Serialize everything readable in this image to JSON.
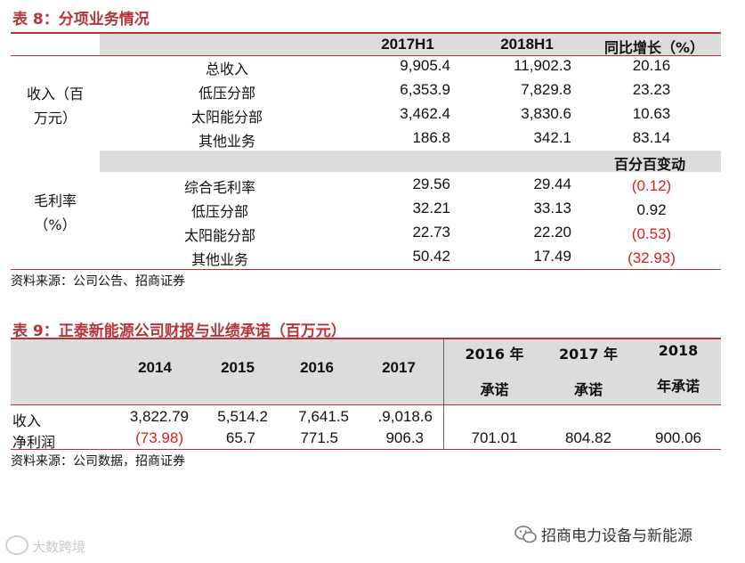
{
  "table8": {
    "title": "表 8：分项业务情况",
    "headers": [
      "2017H1",
      "2018H1",
      "同比增长（%）"
    ],
    "revenue_group": [
      "收入（百",
      "万元）"
    ],
    "revenue_rows": [
      {
        "label": "总收入",
        "v1": "9,905.4",
        "v2": "11,902.3",
        "v3": "20.16"
      },
      {
        "label": "低压分部",
        "v1": "6,353.9",
        "v2": "7,829.8",
        "v3": "23.23"
      },
      {
        "label": "太阳能分部",
        "v1": "3,462.4",
        "v2": "3,830.6",
        "v3": "10.63"
      },
      {
        "label": "其他业务",
        "v1": "186.8",
        "v2": "342.1",
        "v3": "83.14"
      }
    ],
    "margin_header": "百分百变动",
    "margin_group": [
      "毛利率",
      "（%）"
    ],
    "margin_rows": [
      {
        "label": "综合毛利率",
        "v1": "29.56",
        "v2": "29.44",
        "v3": "(0.12)"
      },
      {
        "label": "低压分部",
        "v1": "32.21",
        "v2": "33.13",
        "v3": "0.92"
      },
      {
        "label": "太阳能分部",
        "v1": "22.73",
        "v2": "22.20",
        "v3": "(0.53)"
      },
      {
        "label": "其他业务",
        "v1": "50.42",
        "v2": "17.49",
        "v3": "(32.93)"
      }
    ],
    "source": "资料来源：公司公告、招商证券"
  },
  "table9": {
    "title": "表 9：正泰新能源公司财报与业绩承诺（百万元）",
    "years": [
      "2014",
      "2015",
      "2016",
      "2017"
    ],
    "promise_headers": [
      {
        "line1": "2016 年",
        "line2": "承诺"
      },
      {
        "line1": "2017 年",
        "line2": "承诺"
      },
      {
        "line1": "2018",
        "line2": "年承诺"
      }
    ],
    "rows": [
      {
        "label": "收入",
        "values": [
          "3,822.79",
          "5,514.2",
          "7,641.5",
          ".9,018.6"
        ],
        "promises": [
          "",
          "",
          ""
        ]
      },
      {
        "label": "净利润",
        "values": [
          "(73.98)",
          "65.7",
          "771.5",
          "906.3"
        ],
        "promises": [
          "701.01",
          "804.82",
          "900.06"
        ]
      }
    ],
    "source": "资料来源：公司数据，招商证券"
  },
  "footer": {
    "brand": "招商电力设备与新能源",
    "watermark": "大数跨境"
  },
  "colors": {
    "title": "#b5343a",
    "negative": "#d42020",
    "header_bg": "#dcdcdc"
  }
}
